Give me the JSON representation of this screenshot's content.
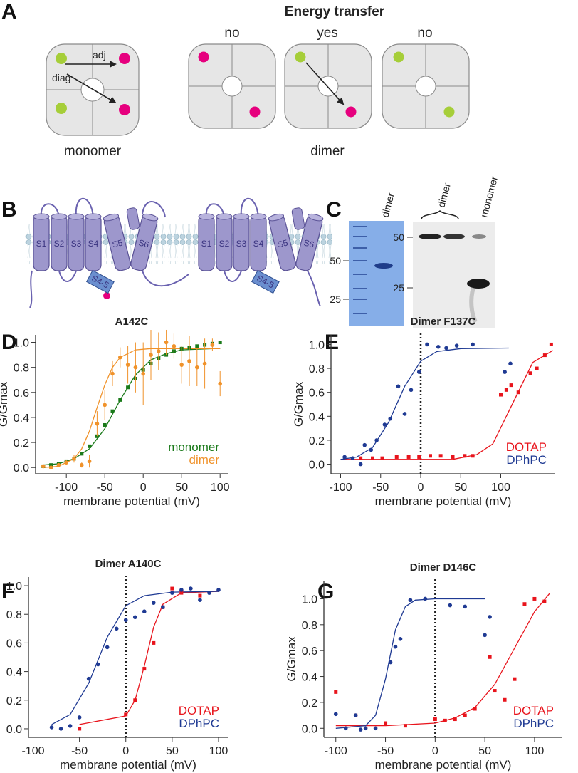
{
  "panel_labels": [
    "A",
    "B",
    "C",
    "D",
    "E",
    "F",
    "G"
  ],
  "energy_transfer": {
    "title": "Energy transfer",
    "outcomes": [
      "no",
      "yes",
      "no"
    ],
    "monomer": "monomer",
    "dimer": "dimer",
    "adj": "adj",
    "diag": "diag"
  },
  "topology": {
    "segments": [
      "S1",
      "S2",
      "S3",
      "S4",
      "S5",
      "S6"
    ],
    "linker": "S4-5"
  },
  "gels": {
    "left_lane": "dimer",
    "left_markers": [
      "50",
      "25"
    ],
    "right_lanes": [
      "dimer",
      "monomer"
    ],
    "right_markers": [
      "50",
      "25"
    ]
  },
  "chart_data": [
    {
      "type": "scatter",
      "title": "A142C",
      "xlabel": "membrane potential (mV)",
      "ylabel": "G/Gmax",
      "xlim": [
        -140,
        110
      ],
      "xticks": [
        -100,
        -50,
        0,
        50,
        100
      ],
      "ylim": [
        -0.05,
        1.06
      ],
      "yticks": [
        {
          "value": 0,
          "label": "0.0"
        },
        0.2,
        0.4,
        0.6,
        0.8,
        {
          "value": 1,
          "label": "1.0"
        }
      ],
      "legend": "lower right",
      "series": [
        {
          "name": "monomer",
          "color": "#1a7a1a",
          "marker": "square",
          "x": [
            -130,
            -120,
            -110,
            -100,
            -90,
            -80,
            -70,
            -60,
            -50,
            -40,
            -30,
            -20,
            -10,
            0,
            10,
            20,
            30,
            40,
            50,
            60,
            70,
            80,
            90,
            100
          ],
          "values": [
            0.01,
            0.02,
            0.03,
            0.05,
            0.07,
            0.11,
            0.17,
            0.25,
            0.34,
            0.45,
            0.54,
            0.64,
            0.71,
            0.78,
            0.83,
            0.87,
            0.9,
            0.93,
            0.95,
            0.96,
            0.97,
            0.98,
            0.99,
            1.0
          ]
        },
        {
          "name": "dimer",
          "color": "#f0922a",
          "marker": "circle",
          "x": [
            -130,
            -120,
            -110,
            -100,
            -90,
            -80,
            -70,
            -60,
            -50,
            -40,
            -30,
            -20,
            -10,
            0,
            10,
            20,
            30,
            40,
            50,
            60,
            70,
            80,
            90,
            100
          ],
          "values": [
            0.01,
            0.0,
            0.02,
            0.04,
            0.07,
            0.02,
            0.05,
            0.35,
            0.5,
            0.75,
            0.88,
            0.82,
            0.8,
            0.75,
            0.9,
            0.93,
            1.0,
            0.97,
            0.82,
            0.85,
            0.8,
            0.83,
            0.98,
            0.67
          ],
          "errors": [
            0.01,
            0.01,
            0.01,
            0.02,
            0.03,
            0.02,
            0.05,
            0.1,
            0.12,
            0.1,
            0.08,
            0.15,
            0.2,
            0.25,
            0.2,
            0.15,
            0.1,
            0.1,
            0.15,
            0.2,
            0.15,
            0.2,
            0.05,
            0.1
          ]
        }
      ],
      "fits": [
        {
          "color": "#1a7a1a",
          "x": [
            -130,
            -110,
            -90,
            -70,
            -50,
            -30,
            -10,
            10,
            30,
            50,
            70,
            90,
            100
          ],
          "values": [
            0.02,
            0.03,
            0.07,
            0.15,
            0.31,
            0.54,
            0.74,
            0.86,
            0.91,
            0.94,
            0.945,
            0.95,
            0.95
          ]
        },
        {
          "color": "#f0922a",
          "x": [
            -130,
            -110,
            -90,
            -80,
            -70,
            -60,
            -50,
            -40,
            -30,
            -10,
            10,
            50,
            100
          ],
          "values": [
            0.0,
            0.01,
            0.07,
            0.15,
            0.29,
            0.48,
            0.66,
            0.8,
            0.88,
            0.94,
            0.95,
            0.95,
            0.95
          ]
        }
      ]
    },
    {
      "type": "scatter",
      "title": "Dimer F137C",
      "xlabel": "membrane potential (mV)",
      "ylabel": "G/Gmax",
      "xlim": [
        -112,
        168
      ],
      "xticks": [
        -100,
        -50,
        0,
        50,
        100
      ],
      "ylim": [
        -0.08,
        1.08
      ],
      "yticks": [
        {
          "value": 0,
          "label": "0.0"
        },
        0.2,
        0.4,
        0.6,
        0.8,
        {
          "value": 1,
          "label": "1.0"
        }
      ],
      "reference_line_x": 0,
      "legend": "lower right",
      "series": [
        {
          "name": "DOTAP",
          "color": "#e8141c",
          "marker": "square",
          "x": [
            -75,
            -60,
            -48,
            -30,
            -15,
            -2,
            12,
            25,
            40,
            55,
            65,
            100,
            107,
            113,
            122,
            137,
            145,
            155,
            163
          ],
          "values": [
            0.05,
            0.05,
            0.05,
            0.06,
            0.06,
            0.06,
            0.07,
            0.07,
            0.06,
            0.07,
            0.07,
            0.58,
            0.62,
            0.66,
            0.6,
            0.76,
            0.8,
            0.91,
            1.0
          ]
        },
        {
          "name": "DPhPC",
          "color": "#1f3a93",
          "marker": "circle",
          "x": [
            -95,
            -85,
            -75,
            -70,
            -62,
            -55,
            -45,
            -38,
            -28,
            -20,
            -12,
            -2,
            8,
            22,
            32,
            45,
            65,
            105,
            112
          ],
          "values": [
            0.06,
            0.05,
            0.0,
            0.16,
            0.12,
            0.2,
            0.33,
            0.38,
            0.65,
            0.42,
            0.62,
            0.77,
            1.0,
            0.98,
            0.97,
            0.99,
            1.0,
            0.77,
            0.84
          ]
        }
      ],
      "fits": [
        {
          "color": "#e8141c",
          "x": [
            -100,
            40,
            70,
            90,
            115,
            140,
            165
          ],
          "values": [
            0.04,
            0.04,
            0.08,
            0.17,
            0.51,
            0.85,
            0.95
          ]
        },
        {
          "color": "#1f3a93",
          "x": [
            -100,
            -80,
            -60,
            -40,
            -20,
            0,
            20,
            50,
            110
          ],
          "values": [
            0.04,
            0.06,
            0.14,
            0.35,
            0.65,
            0.86,
            0.94,
            0.965,
            0.97
          ]
        }
      ]
    },
    {
      "type": "scatter",
      "title": "Dimer A140C",
      "xlabel": "membrane potential (mV)",
      "ylabel": "G/Gmax",
      "xlim": [
        -105,
        110
      ],
      "xticks": [
        -100,
        -50,
        0,
        50,
        100
      ],
      "ylim": [
        -0.06,
        1.06
      ],
      "yticks": [
        {
          "value": 0,
          "label": "0.0"
        },
        0.2,
        0.4,
        0.6,
        0.8,
        {
          "value": 1,
          "label": "1.0"
        }
      ],
      "reference_line_x": 0,
      "legend": "lower right",
      "series": [
        {
          "name": "DOTAP",
          "color": "#e8141c",
          "marker": "square",
          "x": [
            -50,
            0,
            10,
            20,
            30,
            40,
            50,
            60,
            80
          ],
          "values": [
            0.0,
            0.1,
            0.2,
            0.42,
            0.6,
            0.85,
            0.98,
            0.95,
            0.93
          ]
        },
        {
          "name": "DPhPC",
          "color": "#1f3a93",
          "marker": "circle",
          "x": [
            -80,
            -70,
            -60,
            -50,
            -40,
            -30,
            -20,
            -10,
            0,
            10,
            20,
            30,
            40,
            50,
            60,
            70,
            80,
            90,
            100
          ],
          "values": [
            0.01,
            0.0,
            0.02,
            0.08,
            0.35,
            0.45,
            0.57,
            0.7,
            0.76,
            0.78,
            0.82,
            0.88,
            0.85,
            0.95,
            0.97,
            0.98,
            0.9,
            0.95,
            0.97
          ]
        }
      ],
      "fits": [
        {
          "color": "#e8141c",
          "x": [
            -50,
            0,
            10,
            20,
            30,
            40,
            60,
            100
          ],
          "values": [
            0.03,
            0.09,
            0.2,
            0.44,
            0.71,
            0.87,
            0.95,
            0.96
          ]
        },
        {
          "color": "#1f3a93",
          "x": [
            -80,
            -60,
            -40,
            -20,
            0,
            20,
            50,
            100
          ],
          "values": [
            0.03,
            0.1,
            0.32,
            0.64,
            0.86,
            0.93,
            0.955,
            0.96
          ]
        }
      ]
    },
    {
      "type": "scatter",
      "title": "Dimer D146C",
      "xlabel": "membrane potential (mV)",
      "ylabel": "G/Gmax",
      "xlim": [
        -112,
        128
      ],
      "xticks": [
        -100,
        -50,
        0,
        50,
        100
      ],
      "ylim": [
        -0.07,
        1.14
      ],
      "yticks": [
        {
          "value": 0,
          "label": "0.0"
        },
        0.2,
        0.4,
        0.6,
        0.8,
        {
          "value": 1,
          "label": "1.0"
        }
      ],
      "reference_line_x": 0,
      "legend": "lower right",
      "series": [
        {
          "name": "DOTAP",
          "color": "#e8141c",
          "marker": "square",
          "x": [
            -100,
            -80,
            -50,
            -30,
            0,
            10,
            20,
            30,
            40,
            55,
            60,
            70,
            80,
            90,
            100,
            110
          ],
          "values": [
            0.28,
            0.1,
            0.04,
            0.02,
            0.07,
            0.06,
            0.07,
            0.1,
            0.15,
            0.55,
            0.29,
            0.22,
            0.38,
            0.96,
            1.0,
            0.98
          ]
        },
        {
          "name": "DPhPC",
          "color": "#1f3a93",
          "marker": "circle",
          "x": [
            -100,
            -90,
            -80,
            -75,
            -70,
            -60,
            -45,
            -40,
            -35,
            -25,
            -10,
            15,
            30,
            50,
            55
          ],
          "values": [
            0.11,
            0.0,
            0.1,
            -0.01,
            0.0,
            0.0,
            0.51,
            0.63,
            0.69,
            0.99,
            1.0,
            0.95,
            0.94,
            0.72,
            0.86
          ]
        }
      ],
      "fits": [
        {
          "color": "#e8141c",
          "x": [
            -100,
            -50,
            0,
            20,
            40,
            60,
            80,
            100,
            115
          ],
          "values": [
            0.02,
            0.02,
            0.04,
            0.08,
            0.16,
            0.34,
            0.62,
            0.9,
            1.04
          ]
        },
        {
          "color": "#1f3a93",
          "x": [
            -100,
            -70,
            -60,
            -50,
            -40,
            -30,
            -20,
            0,
            50
          ],
          "values": [
            0.0,
            0.02,
            0.1,
            0.38,
            0.76,
            0.94,
            0.99,
            1.0,
            1.0
          ]
        }
      ]
    }
  ]
}
